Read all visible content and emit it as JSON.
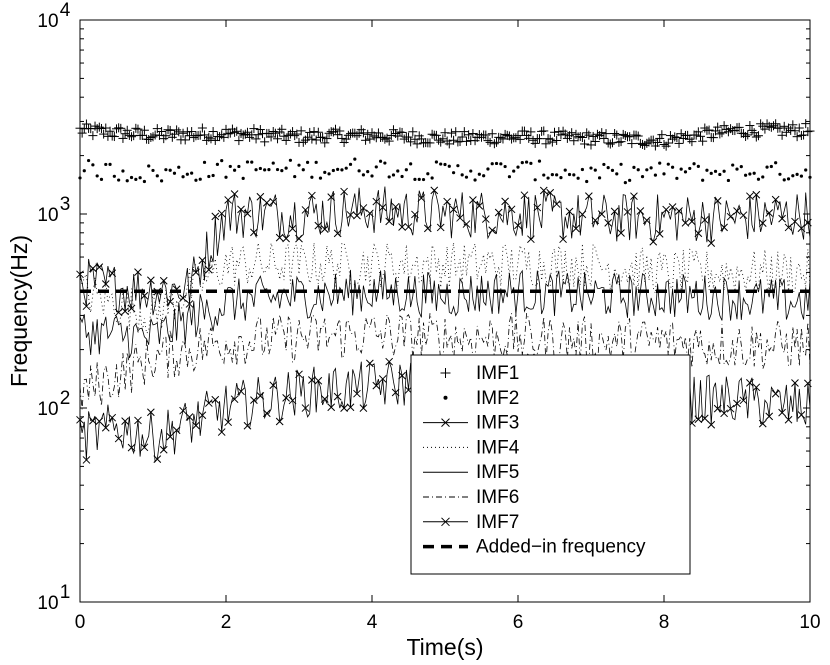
{
  "chart_data": {
    "type": "line",
    "xlabel": "Time(s)",
    "ylabel": "Frequency(Hz)",
    "xlim": [
      0,
      10
    ],
    "ylim": [
      10,
      10000
    ],
    "yscale": "log",
    "grid": false,
    "legend_position": "lower-right",
    "x_ticks": [
      "0",
      "2",
      "4",
      "6",
      "8",
      "10"
    ],
    "y_ticks": [
      {
        "base": "10",
        "exp": "1"
      },
      {
        "base": "10",
        "exp": "2"
      },
      {
        "base": "10",
        "exp": "3"
      },
      {
        "base": "10",
        "exp": "4"
      }
    ],
    "series": [
      {
        "name": "IMF1",
        "style": "plus-markers",
        "x": [
          0,
          1,
          2,
          3,
          4,
          5,
          6,
          7,
          8,
          9,
          10
        ],
        "y": [
          2700,
          2550,
          2600,
          2500,
          2550,
          2450,
          2500,
          2450,
          2400,
          2700,
          2700
        ]
      },
      {
        "name": "IMF2",
        "style": "dot-markers",
        "x": [
          0,
          1,
          2,
          3,
          4,
          5,
          6,
          7,
          8,
          9,
          10
        ],
        "y": [
          1700,
          1600,
          1700,
          1700,
          1750,
          1650,
          1700,
          1600,
          1650,
          1650,
          1650
        ]
      },
      {
        "name": "IMF3",
        "style": "solid-x-markers",
        "x": [
          0,
          0.5,
          1,
          1.5,
          2,
          3,
          4,
          5,
          6,
          7,
          8,
          9,
          10
        ],
        "y": [
          450,
          420,
          400,
          420,
          1000,
          1000,
          1050,
          1000,
          1000,
          950,
          950,
          950,
          1000
        ]
      },
      {
        "name": "IMF4",
        "style": "dotted",
        "x": [
          0,
          1,
          2,
          3,
          4,
          5,
          6,
          7,
          8,
          9,
          10
        ],
        "y": [
          400,
          300,
          550,
          550,
          550,
          550,
          550,
          550,
          500,
          500,
          500
        ]
      },
      {
        "name": "IMF5",
        "style": "solid",
        "x": [
          0,
          1,
          2,
          3,
          4,
          5,
          6,
          7,
          8,
          9,
          10
        ],
        "y": [
          250,
          230,
          350,
          380,
          400,
          380,
          400,
          380,
          380,
          370,
          350
        ]
      },
      {
        "name": "IMF6",
        "style": "dash-dot",
        "x": [
          0,
          1,
          2,
          3,
          4,
          5,
          6,
          7,
          8,
          9,
          10
        ],
        "y": [
          120,
          180,
          220,
          230,
          240,
          230,
          230,
          220,
          220,
          210,
          210
        ]
      },
      {
        "name": "IMF7",
        "style": "solid-x-markers",
        "x": [
          0,
          0.5,
          1,
          2,
          3,
          4,
          5,
          6,
          7,
          8,
          9,
          10
        ],
        "y": [
          70,
          80,
          70,
          100,
          120,
          130,
          140,
          140,
          120,
          110,
          110,
          100
        ]
      },
      {
        "name": "Added−in frequency",
        "style": "thick-dashed",
        "x": [
          0,
          10
        ],
        "y": [
          400,
          400
        ]
      }
    ]
  }
}
